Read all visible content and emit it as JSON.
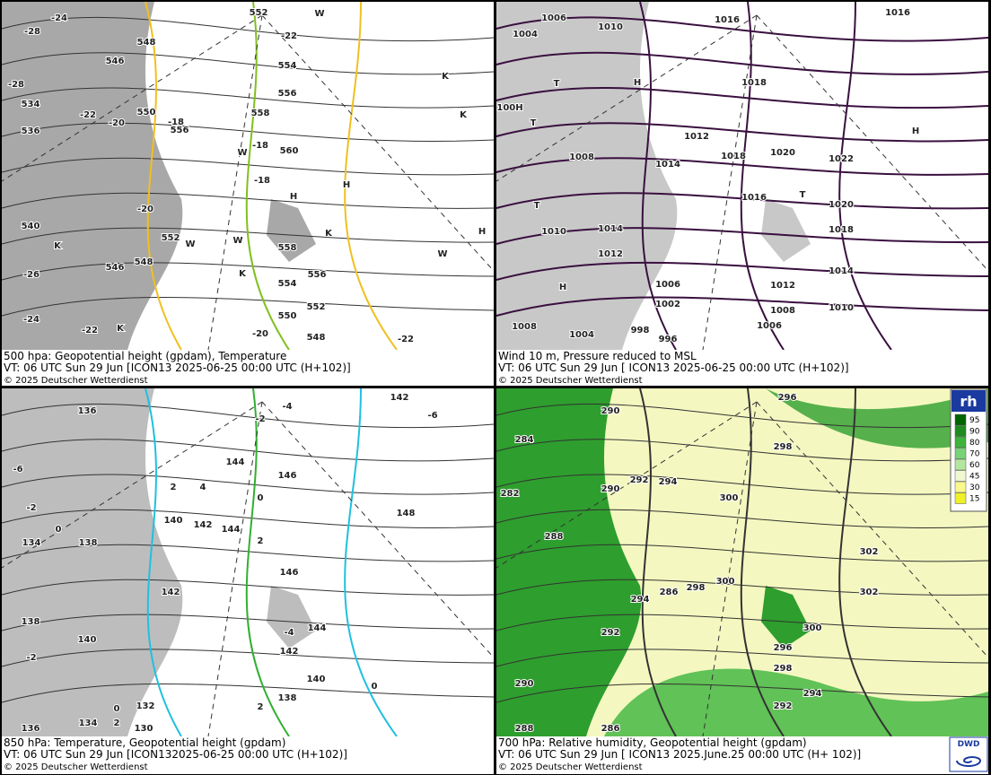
{
  "panels": [
    {
      "caption": [
        "500 hpa: Geopotential height (gpdam), Temperature",
        "VT: 06 UTC Sun  29 Jun [ICON13 2025-06-25 00:00 UTC  (H+102)]",
        "© 2025 Deutscher Wetterdienst"
      ],
      "labels": [
        "552",
        "548",
        "546",
        "550",
        "554",
        "556",
        "558",
        "560",
        "556",
        "552",
        "548",
        "546",
        "554",
        "550",
        "552",
        "548",
        "556",
        "558",
        "-22",
        "-22",
        "-20",
        "-18",
        "-18",
        "-18",
        "-20",
        "-20",
        "-22",
        "-22",
        "-24",
        "-28",
        "-28",
        "-26",
        "-24",
        "H",
        "H",
        "H",
        "K",
        "K",
        "K",
        "K",
        "K",
        "K",
        "W",
        "W",
        "W",
        "W",
        "W",
        "540",
        "536",
        "534"
      ]
    },
    {
      "caption": [
        "Wind 10 m, Pressure reduced to MSL",
        "VT: 06 UTC Sun  29 Jun [ ICON13 2025-06-25 00:00 UTC  (H+102)]",
        "© 2025 Deutscher Wetterdienst"
      ],
      "labels": [
        "1006",
        "1004",
        "1010",
        "1016",
        "1016",
        "1018",
        "1012",
        "1014",
        "1018",
        "1020",
        "1022",
        "1008",
        "1016",
        "1020",
        "1018",
        "1014",
        "1012",
        "1010",
        "1008",
        "1006",
        "1014",
        "1012",
        "1010",
        "1006",
        "1002",
        "998",
        "996",
        "1004",
        "1008",
        "100H",
        "H",
        "H",
        "T",
        "T",
        "T",
        "T",
        "H"
      ]
    },
    {
      "caption": [
        "850 hPa:  Temperature, Geopotential height (gpdam)",
        "VT: 06 UTC Sun  29 Jun [ICON132025-06-25 00:00 UTC  (H+102)]",
        "© 2025 Deutscher Wetterdienst"
      ],
      "labels": [
        "142",
        "-6",
        "-4",
        "-2",
        "136",
        "144",
        "146",
        "148",
        "2",
        "4",
        "0",
        "2",
        "140",
        "142",
        "144",
        "138",
        "134",
        "142",
        "146",
        "144",
        "142",
        "140",
        "138",
        "132",
        "130",
        "134",
        "136",
        "138",
        "140",
        "0",
        "-2",
        "-6",
        "-2",
        "0",
        "2",
        "2",
        "0",
        "-4"
      ]
    },
    {
      "caption": [
        "700 hPa:  Relative humidity, Geopotential height (gpdam)",
        "VT: 06 UTC Sun  29 Jun [ ICON13  2025.June.25 00:00 UTC  (H+ 102)]",
        "© 2025 Deutscher Wetterdienst"
      ],
      "labels": [
        "296",
        "290",
        "298",
        "300",
        "294",
        "292",
        "290",
        "288",
        "286",
        "298",
        "300",
        "296",
        "298",
        "300",
        "294",
        "292",
        "302",
        "302",
        "284",
        "282",
        "294",
        "292",
        "290",
        "288",
        "286"
      ]
    }
  ],
  "rh_legend": {
    "title": "rh",
    "levels": [
      95,
      90,
      80,
      70,
      60,
      45,
      30,
      15
    ],
    "colors": [
      "#006400",
      "#1e8c1e",
      "#3cb43c",
      "#78d278",
      "#b4e6a0",
      "#f0f8d2",
      "#f8f88c",
      "#f0f028"
    ]
  },
  "logo": "DWD"
}
